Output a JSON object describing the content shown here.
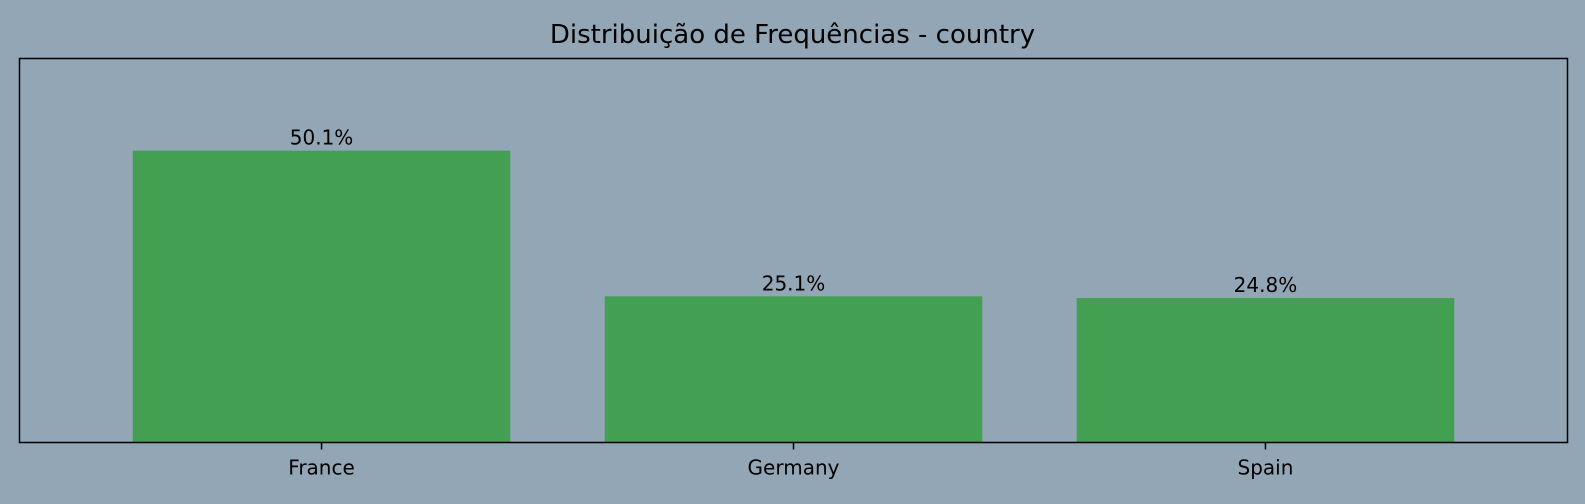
{
  "chart_data": {
    "type": "bar",
    "title": "Distribuição de Frequências - country",
    "xlabel": "",
    "ylabel": "",
    "categories": [
      "France",
      "Germany",
      "Spain"
    ],
    "values": [
      50.1,
      25.1,
      24.8
    ],
    "value_labels": [
      "50.1%",
      "25.1%",
      "24.8%"
    ],
    "ylim": [
      0,
      100
    ],
    "yaxis_visible": false,
    "grid": false,
    "legend": "none",
    "colors": {
      "bar": "#43a052",
      "background": "#93a6b6",
      "axes_edge": "#000000",
      "text": "#000000"
    }
  }
}
